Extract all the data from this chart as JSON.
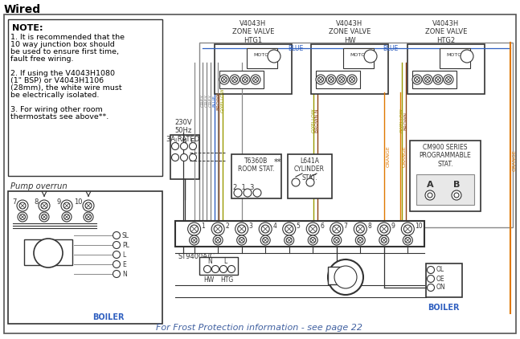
{
  "title": "Wired",
  "bg_color": "#ffffff",
  "note_text": "NOTE:",
  "note_lines": [
    "1. It is recommended that the",
    "10 way junction box should",
    "be used to ensure first time,",
    "fault free wiring.",
    "",
    "2. If using the V4043H1080",
    "(1\" BSP) or V4043H1106",
    "(28mm), the white wire must",
    "be electrically isolated.",
    "",
    "3. For wiring other room",
    "thermostats see above**."
  ],
  "pump_overrun_label": "Pump overrun",
  "frost_text": "For Frost Protection information - see page 22",
  "zone_valve_labels": [
    "V4043H\nZONE VALVE\nHTG1",
    "V4043H\nZONE VALVE\nHW",
    "V4043H\nZONE VALVE\nHTG2"
  ],
  "wire_colors": {
    "grey": "#888888",
    "blue": "#3060c0",
    "brown": "#8B4010",
    "orange": "#e07800",
    "black": "#111111",
    "green_yellow": "#999900",
    "dark": "#333333"
  },
  "mains_label": "230V\n50Hz\n3A RATED",
  "room_stat_label": "T6360B\nROOM STAT.",
  "cylinder_stat_label": "L641A\nCYLINDER\nSTAT.",
  "programmer_label": "CM900 SERIES\nPROGRAMMABLE\nSTAT.",
  "st9400_label": "ST9400A/C",
  "boiler_color": "#3060c0",
  "junction_numbers": [
    "1",
    "2",
    "3",
    "4",
    "5",
    "6",
    "7",
    "8",
    "9",
    "10"
  ]
}
